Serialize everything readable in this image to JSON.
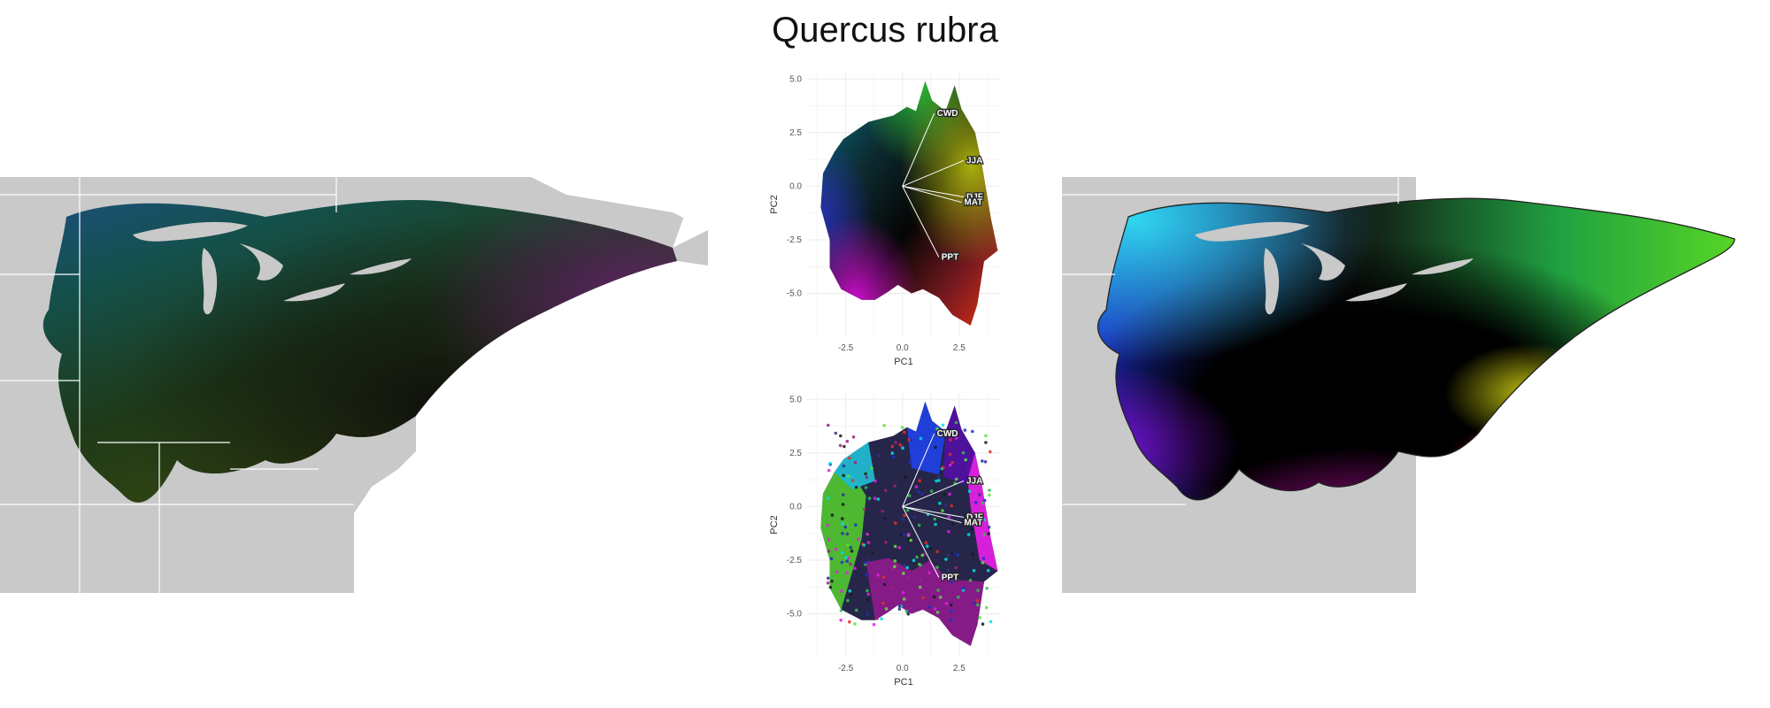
{
  "title": "Quercus rubra",
  "colors": {
    "land_gray": "#c9c9c9",
    "border_white": "#ffffff",
    "grid": "#ebebeb",
    "loading_line": "#ffffff"
  },
  "chart_data": [
    {
      "type": "map",
      "name": "observed-climate-map",
      "description_scale": "RGB-encoded PCA climate space across eastern North America range"
    },
    {
      "type": "scatter",
      "name": "pca-color-key",
      "xlabel": "PC1",
      "ylabel": "PC2",
      "xlim": [
        -4.2,
        4.3
      ],
      "ylim": [
        -7.0,
        5.3
      ],
      "xticks": [
        "-2.5",
        "0.0",
        "2.5"
      ],
      "xtick_values": [
        -2.5,
        0.0,
        2.5
      ],
      "yticks": [
        "5.0",
        "2.5",
        "0.0",
        "-2.5",
        "-5.0"
      ],
      "ytick_values": [
        5.0,
        2.5,
        0.0,
        -2.5,
        -5.0
      ],
      "grid": true,
      "loadings": [
        {
          "label": "CWD",
          "x": 1.4,
          "y": 3.4
        },
        {
          "label": "JJA",
          "x": 2.7,
          "y": 1.2
        },
        {
          "label": "DJF",
          "x": 2.7,
          "y": -0.5
        },
        {
          "label": "MAT",
          "x": 2.6,
          "y": -0.75
        },
        {
          "label": "PPT",
          "x": 1.6,
          "y": -3.3
        }
      ]
    },
    {
      "type": "scatter",
      "name": "pca-site-points",
      "xlabel": "PC1",
      "ylabel": "PC2",
      "xlim": [
        -4.2,
        4.3
      ],
      "ylim": [
        -7.0,
        5.3
      ],
      "xticks": [
        "-2.5",
        "0.0",
        "2.5"
      ],
      "xtick_values": [
        -2.5,
        0.0,
        2.5
      ],
      "yticks": [
        "5.0",
        "2.5",
        "0.0",
        "-2.5",
        "-5.0"
      ],
      "ytick_values": [
        5.0,
        2.5,
        0.0,
        -2.5,
        -5.0
      ],
      "grid": true,
      "loadings": [
        {
          "label": "CWD",
          "x": 1.4,
          "y": 3.4
        },
        {
          "label": "JJA",
          "x": 2.7,
          "y": 1.2
        },
        {
          "label": "DJF",
          "x": 2.7,
          "y": -0.5
        },
        {
          "label": "MAT",
          "x": 2.6,
          "y": -0.75
        },
        {
          "label": "PPT",
          "x": 1.6,
          "y": -3.3
        }
      ]
    },
    {
      "type": "map",
      "name": "smoothed-climate-map",
      "description_scale": "RGB-encoded PCA climate space interpolated within range hull"
    }
  ]
}
